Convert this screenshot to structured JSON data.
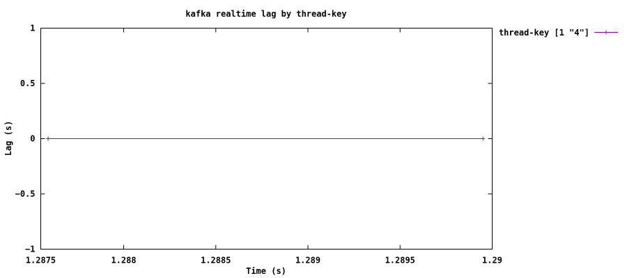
{
  "chart_data": {
    "type": "line",
    "title": "kafka realtime lag by thread-key",
    "xlabel": "Time (s)",
    "ylabel": "Lag (s)",
    "xlim": [
      1.28755,
      1.29
    ],
    "ylim": [
      -1,
      1
    ],
    "x_ticks": [
      1.28755,
      1.288,
      1.2885,
      1.289,
      1.2895,
      1.29
    ],
    "x_tick_labels": [
      "1.2875",
      "1.288",
      "1.2885",
      "1.289",
      "1.2895",
      "1.29"
    ],
    "y_ticks": [
      1,
      0.5,
      0,
      -0.5,
      -1
    ],
    "y_tick_labels": [
      "1",
      "0.5",
      "0",
      "−0.5",
      "−1"
    ],
    "grid": false,
    "legend_position": "outside-top-right",
    "series": [
      {
        "name": "thread-key [1 \"4\"]",
        "color": "#9400d3",
        "marker": "plus",
        "x": [
          1.28759,
          1.28995
        ],
        "y": [
          0,
          0
        ]
      }
    ]
  }
}
